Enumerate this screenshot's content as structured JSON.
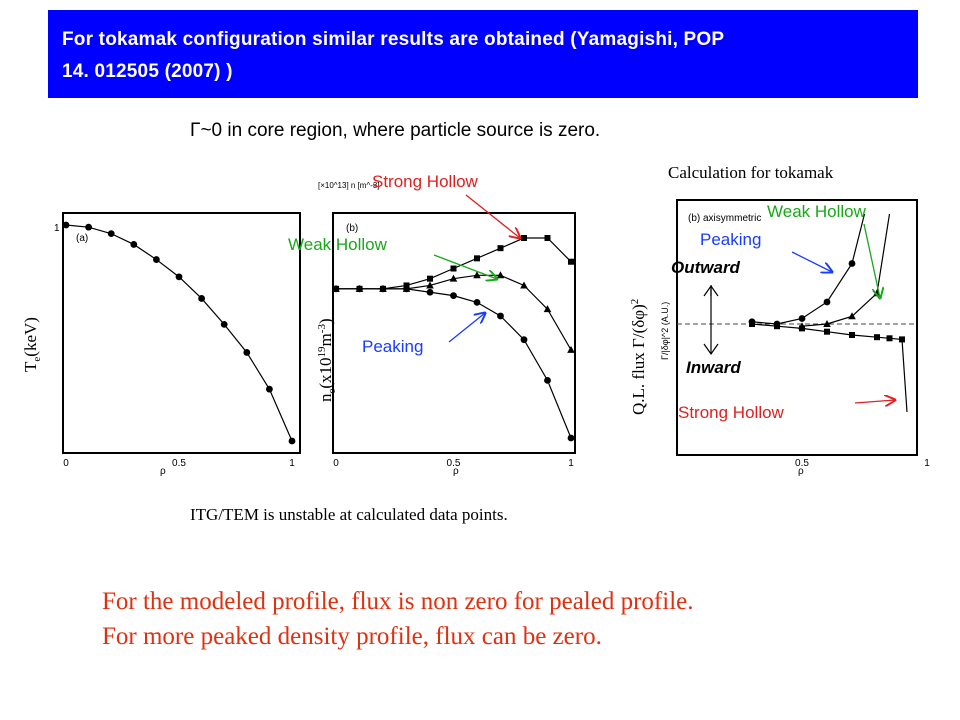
{
  "header": {
    "line1": "For tokamak configuration similar results are obtained (Yamagishi,    POP",
    "line2": "14. 012505 (2007) )"
  },
  "gamma_note": "Γ~0 in core region, where particle source is zero.",
  "calc_title": "Calculation for tokamak",
  "itg_note": "ITG/TEM is unstable at calculated data points.",
  "conclusion": {
    "line1": "For the modeled profile, flux is non zero for pealed profile.",
    "line2": "For more peaked density profile, flux can be zero."
  },
  "labels": {
    "strong_hollow": "Strong Hollow",
    "weak_hollow": "Weak Hollow",
    "peaking": "Peaking",
    "outward": "Outward",
    "inward": "Inward"
  },
  "colors": {
    "banner": "#0000ff",
    "strong_hollow": "#e02020",
    "weak_hollow": "#18a818",
    "peaking": "#1a3cff",
    "conclusion": "#e03010"
  },
  "chart_data": [
    {
      "type": "line",
      "panel": "(a)",
      "ylabel": "Te(keV)",
      "xlabel": "ρ",
      "x_ticks": [
        "0",
        "0.5",
        "1"
      ],
      "y_ticks": [
        "1"
      ],
      "xlim": [
        0,
        1
      ],
      "ylim": [
        0,
        1.05
      ],
      "series": [
        {
          "marker": "circle",
          "x": [
            0.0,
            0.1,
            0.2,
            0.3,
            0.4,
            0.5,
            0.6,
            0.7,
            0.8,
            0.9,
            1.0
          ],
          "y": [
            1.0,
            0.99,
            0.96,
            0.91,
            0.84,
            0.76,
            0.66,
            0.54,
            0.41,
            0.24,
            0.0
          ]
        }
      ]
    },
    {
      "type": "line",
      "panel": "(b)",
      "ylabel": "ne(x10^19 m^-3)",
      "xlabel": "ρ",
      "x_ticks": [
        "0",
        "0.5",
        "1"
      ],
      "y_unit_note": "[×10^13]  n [m^-3]",
      "xlim": [
        0,
        1
      ],
      "series": [
        {
          "name": "Strong Hollow",
          "marker": "square",
          "x": [
            0.0,
            0.1,
            0.2,
            0.3,
            0.4,
            0.5,
            0.6,
            0.7,
            0.8,
            0.9,
            1.0
          ],
          "y": [
            0.54,
            0.54,
            0.54,
            0.55,
            0.57,
            0.6,
            0.63,
            0.66,
            0.69,
            0.69,
            0.62
          ]
        },
        {
          "name": "Weak Hollow",
          "marker": "triangle",
          "x": [
            0.0,
            0.1,
            0.2,
            0.3,
            0.4,
            0.5,
            0.6,
            0.7,
            0.8,
            0.9,
            1.0
          ],
          "y": [
            0.54,
            0.54,
            0.54,
            0.54,
            0.55,
            0.57,
            0.58,
            0.58,
            0.55,
            0.48,
            0.36
          ]
        },
        {
          "name": "Peaking",
          "marker": "circle",
          "x": [
            0.0,
            0.1,
            0.2,
            0.3,
            0.4,
            0.5,
            0.6,
            0.7,
            0.8,
            0.9,
            1.0
          ],
          "y": [
            0.54,
            0.54,
            0.54,
            0.54,
            0.53,
            0.52,
            0.5,
            0.46,
            0.39,
            0.27,
            0.1
          ]
        }
      ]
    },
    {
      "type": "line",
      "panel": "(b) axisymmetric",
      "ylabel": "Q.L. flux Γ/(δφ)^2",
      "y_unit_note": "Γ/|δφ|^2 (A.U.)",
      "xlabel": "ρ",
      "x_ticks": [
        "0.5",
        "1"
      ],
      "xlim": [
        0,
        1
      ],
      "series": [
        {
          "name": "Peaking",
          "marker": "circle",
          "x": [
            0.3,
            0.4,
            0.5,
            0.6,
            0.7,
            0.75
          ],
          "y": [
            0.02,
            0.0,
            0.05,
            0.2,
            0.55,
            1.0
          ]
        },
        {
          "name": "Weak Hollow",
          "marker": "triangle",
          "x": [
            0.5,
            0.6,
            0.7,
            0.8,
            0.85
          ],
          "y": [
            -0.02,
            0.0,
            0.07,
            0.28,
            1.0
          ]
        },
        {
          "name": "Strong Hollow",
          "marker": "square",
          "x": [
            0.3,
            0.4,
            0.5,
            0.6,
            0.7,
            0.8,
            0.85,
            0.9,
            0.92
          ],
          "y": [
            0.0,
            -0.02,
            -0.04,
            -0.07,
            -0.1,
            -0.12,
            -0.13,
            -0.14,
            -0.8
          ]
        }
      ]
    }
  ]
}
